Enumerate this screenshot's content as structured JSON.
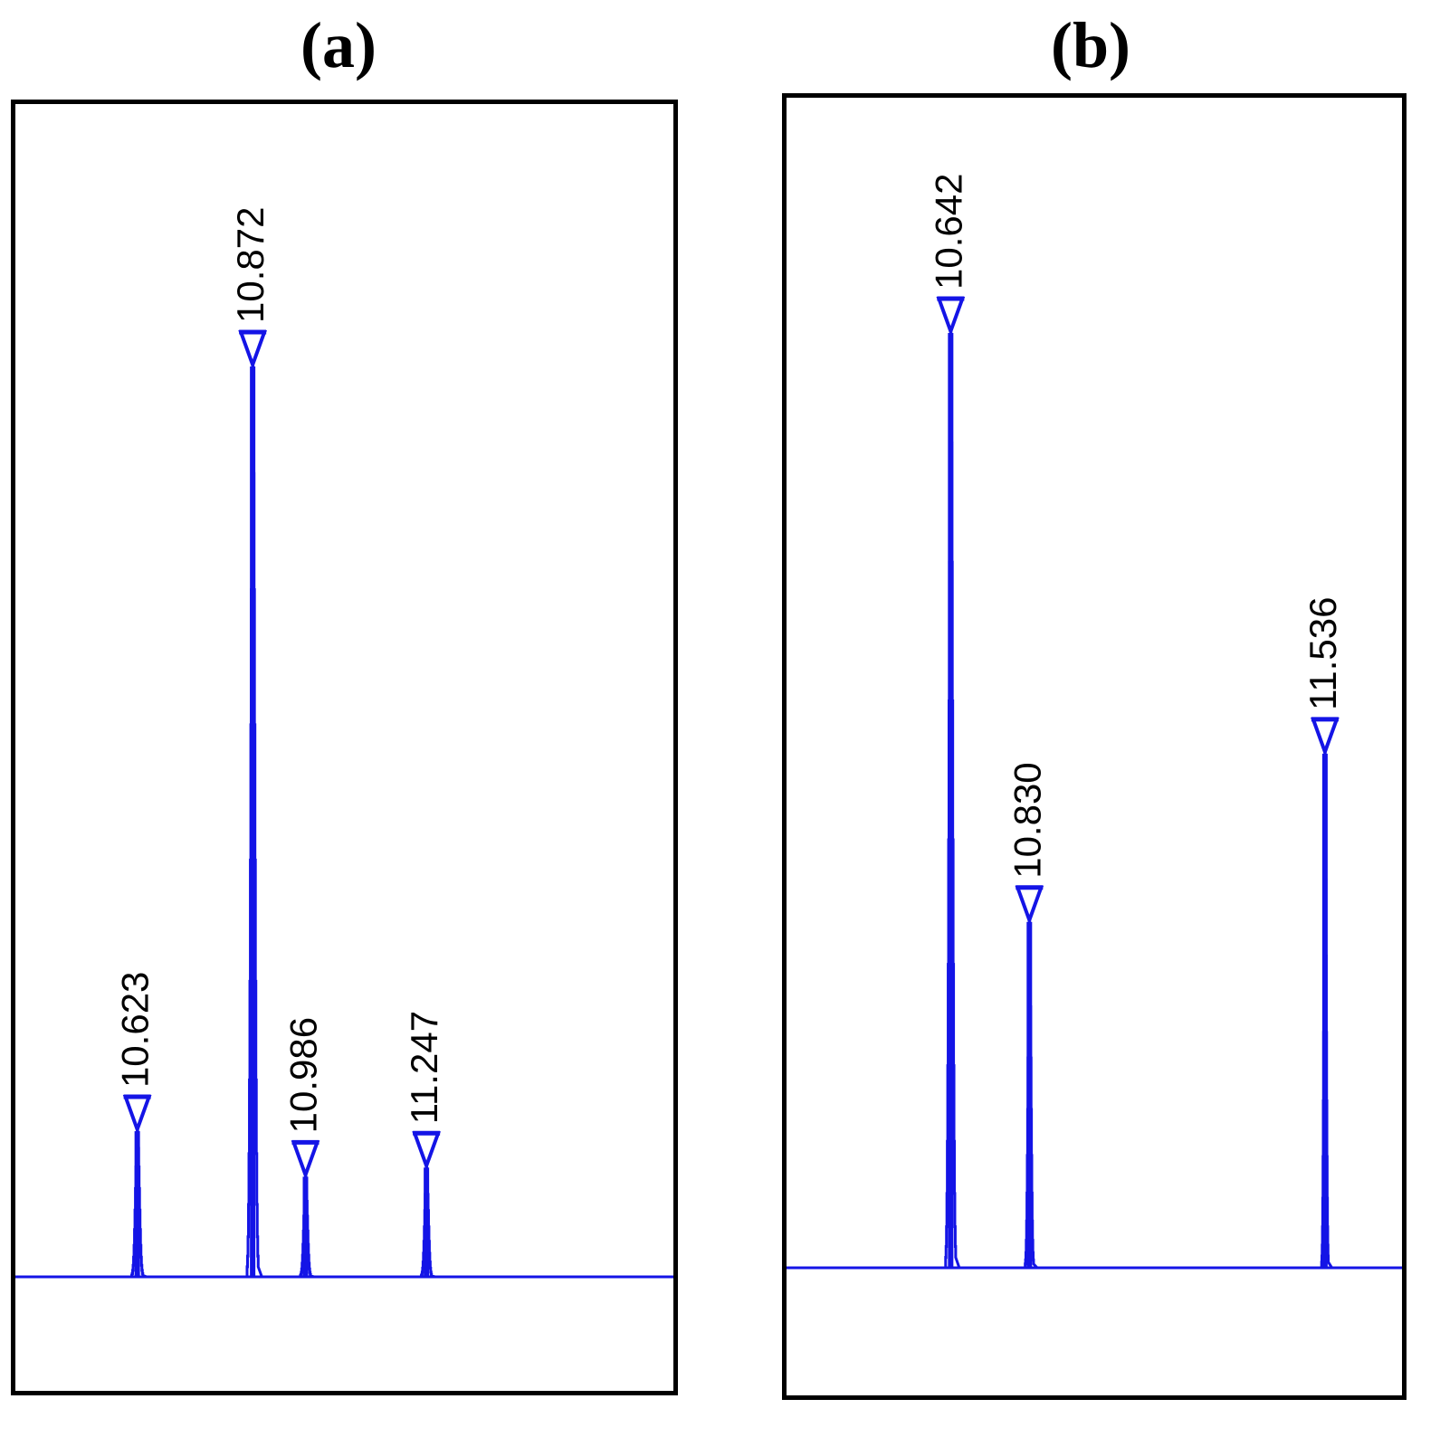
{
  "colors": {
    "trace": "#1414e6",
    "frame": "#000000"
  },
  "panels": [
    {
      "label": "(a)"
    },
    {
      "label": "(b)"
    }
  ],
  "chart_data": [
    {
      "type": "line",
      "title": "(a)",
      "xlabel": "",
      "ylabel": "",
      "grid": false,
      "ylim": [
        0,
        100
      ],
      "xlim": [
        10.36,
        11.78
      ],
      "peaks": [
        {
          "label": "10.623",
          "x": 10.623,
          "height": 16,
          "width": 0.012
        },
        {
          "label": "10.872",
          "x": 10.872,
          "height": 100,
          "width": 0.012
        },
        {
          "label": "10.986",
          "x": 10.986,
          "height": 11,
          "width": 0.011
        },
        {
          "label": "11.247",
          "x": 11.247,
          "height": 12,
          "width": 0.011
        }
      ]
    },
    {
      "type": "line",
      "title": "(b)",
      "xlabel": "",
      "ylabel": "",
      "grid": false,
      "ylim": [
        0,
        100
      ],
      "xlim": [
        10.25,
        11.72
      ],
      "peaks": [
        {
          "label": "10.642",
          "x": 10.642,
          "height": 100,
          "width": 0.012
        },
        {
          "label": "10.830",
          "x": 10.83,
          "height": 37,
          "width": 0.01
        },
        {
          "label": "11.536",
          "x": 11.536,
          "height": 55,
          "width": 0.008
        }
      ]
    }
  ]
}
